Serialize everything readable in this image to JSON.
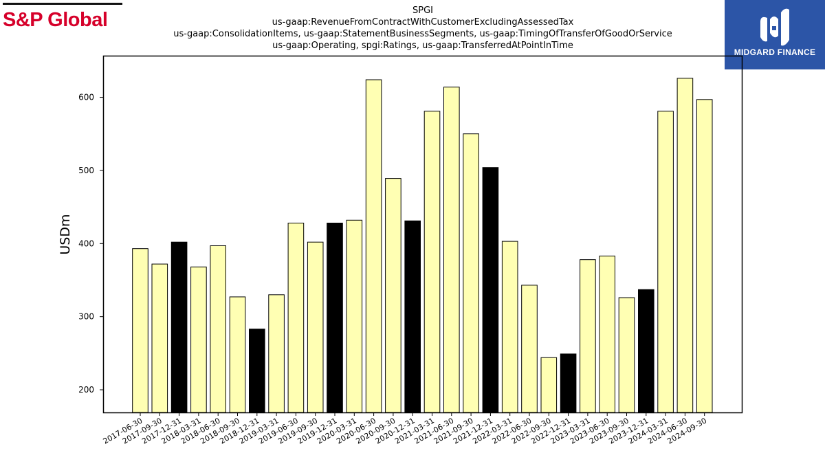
{
  "branding": {
    "left_logo_text": "S&P Global",
    "left_logo_color": "#d6002a",
    "right_logo_text": "MIDGARD FINANCE",
    "right_logo_bg": "#2c55a7"
  },
  "chart_data": {
    "type": "bar",
    "title_lines": [
      "SPGI",
      "us-gaap:RevenueFromContractWithCustomerExcludingAssessedTax",
      "us-gaap:ConsolidationItems, us-gaap:StatementBusinessSegments, us-gaap:TimingOfTransferOfGoodOrService",
      "us-gaap:Operating, spgi:Ratings, us-gaap:TransferredAtPointInTime"
    ],
    "xlabel": "",
    "ylabel": "USDm",
    "ylim": [
      169,
      656
    ],
    "yticks": [
      200,
      300,
      400,
      500,
      600
    ],
    "grid": false,
    "colors": {
      "default": "#ffffb3",
      "highlight": "#000000",
      "edge": "#000000"
    },
    "categories": [
      "2017-06-30",
      "2017-09-30",
      "2017-12-31",
      "2018-03-31",
      "2018-06-30",
      "2018-09-30",
      "2018-12-31",
      "2019-03-31",
      "2019-06-30",
      "2019-09-30",
      "2019-12-31",
      "2020-03-31",
      "2020-06-30",
      "2020-09-30",
      "2020-12-31",
      "2021-03-31",
      "2021-06-30",
      "2021-09-30",
      "2021-12-31",
      "2022-03-31",
      "2022-06-30",
      "2022-09-30",
      "2022-12-31",
      "2023-03-31",
      "2023-06-30",
      "2023-09-30",
      "2023-12-31",
      "2024-03-31",
      "2024-06-30",
      "2024-09-30"
    ],
    "values": [
      393,
      372,
      402,
      368,
      397,
      327,
      283,
      330,
      428,
      402,
      428,
      432,
      624,
      489,
      431,
      581,
      614,
      550,
      504,
      403,
      343,
      244,
      249,
      378,
      383,
      326,
      337,
      581,
      626,
      597
    ],
    "highlight_categories": [
      "2017-12-31",
      "2018-12-31",
      "2019-12-31",
      "2020-12-31",
      "2021-12-31",
      "2022-12-31",
      "2023-12-31"
    ]
  }
}
